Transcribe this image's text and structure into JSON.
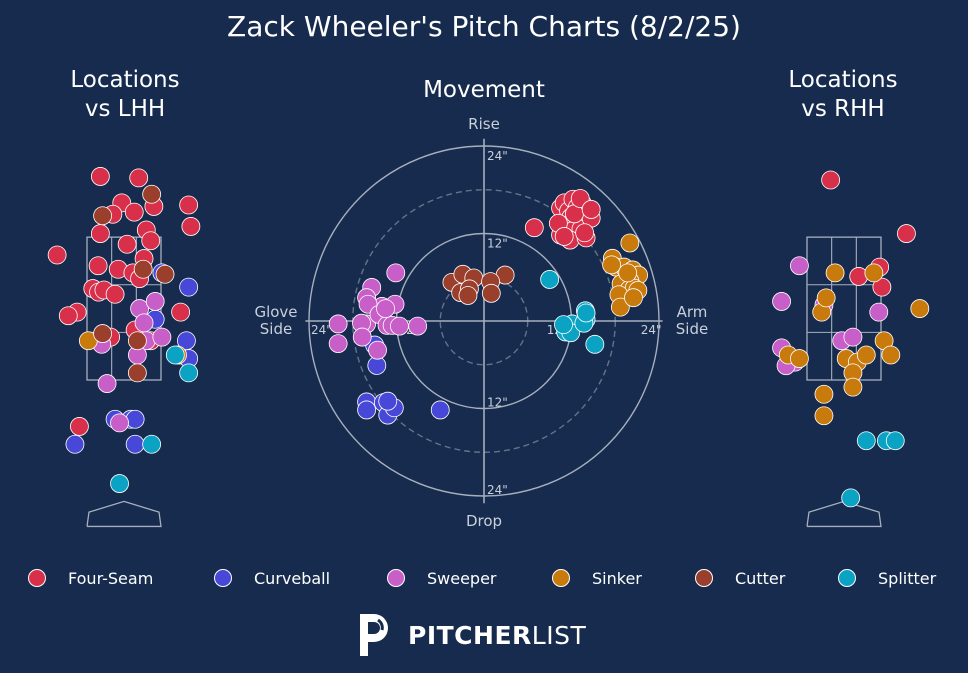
{
  "title": "Zack Wheeler's Pitch Charts (8/2/25)",
  "brand": {
    "bold": "PITCHER",
    "light": "LIST"
  },
  "colors": {
    "background": "#162b4d",
    "grid": "#a6afbd",
    "Four-Seam": "#d8304a",
    "Curveball": "#4747d8",
    "Sweeper": "#c85ec8",
    "Sinker": "#c97a0d",
    "Cutter": "#9a3f2c",
    "Splitter": "#0aa3c4"
  },
  "legend": [
    "Four-Seam",
    "Curveball",
    "Sweeper",
    "Sinker",
    "Cutter",
    "Splitter"
  ],
  "chart_data": [
    {
      "type": "scatter",
      "title": "Locations\nvs LHH",
      "xlim": [
        -2.4,
        2.4
      ],
      "ylim": [
        -0.6,
        5.0
      ],
      "strike_zone": {
        "x": [
          -0.83,
          0.83
        ],
        "y": [
          1.5,
          3.5
        ]
      },
      "series": [
        {
          "name": "Four-Seam",
          "points": [
            [
              -0.53,
              4.35
            ],
            [
              0.33,
              4.33
            ],
            [
              -0.05,
              3.98
            ],
            [
              0.23,
              3.85
            ],
            [
              -0.25,
              3.82
            ],
            [
              0.67,
              3.93
            ],
            [
              -0.53,
              3.55
            ],
            [
              0.5,
              3.6
            ],
            [
              0.6,
              3.45
            ],
            [
              0.07,
              3.4
            ],
            [
              -0.58,
              3.1
            ],
            [
              -0.13,
              3.05
            ],
            [
              0.2,
              3.0
            ],
            [
              0.45,
              3.2
            ],
            [
              0.35,
              2.92
            ],
            [
              -0.7,
              2.78
            ],
            [
              -0.57,
              2.73
            ],
            [
              -0.45,
              2.76
            ],
            [
              -0.2,
              2.7
            ],
            [
              -1.5,
              3.25
            ],
            [
              -1.05,
              2.45
            ],
            [
              -1.25,
              2.4
            ],
            [
              0.25,
              2.2
            ],
            [
              -0.3,
              2.1
            ],
            [
              1.27,
              2.45
            ],
            [
              1.45,
              3.95
            ],
            [
              1.5,
              3.65
            ],
            [
              -1.0,
              0.85
            ],
            [
              0.6,
              2.05
            ]
          ]
        },
        {
          "name": "Curveball",
          "points": [
            [
              0.85,
              3.0
            ],
            [
              1.45,
              2.8
            ],
            [
              0.7,
              2.35
            ],
            [
              1.25,
              1.85
            ],
            [
              1.4,
              2.05
            ],
            [
              -0.2,
              0.95
            ],
            [
              0.15,
              0.95
            ],
            [
              0.25,
              0.95
            ],
            [
              -1.1,
              0.6
            ],
            [
              0.25,
              0.6
            ],
            [
              1.45,
              1.8
            ]
          ]
        },
        {
          "name": "Sweeper",
          "points": [
            [
              0.35,
              2.5
            ],
            [
              0.7,
              2.6
            ],
            [
              0.45,
              2.3
            ],
            [
              0.5,
              2.05
            ],
            [
              0.3,
              1.85
            ],
            [
              0.85,
              2.1
            ],
            [
              -0.5,
              2.0
            ],
            [
              -0.38,
              1.45
            ],
            [
              -0.1,
              0.9
            ]
          ]
        },
        {
          "name": "Sinker",
          "points": [
            [
              -0.8,
              2.05
            ],
            [
              1.2,
              1.85
            ]
          ]
        },
        {
          "name": "Cutter",
          "points": [
            [
              0.62,
              4.1
            ],
            [
              -0.48,
              3.8
            ],
            [
              0.43,
              3.05
            ],
            [
              0.92,
              2.98
            ],
            [
              -0.48,
              2.15
            ],
            [
              0.3,
              2.05
            ],
            [
              0.3,
              1.6
            ]
          ]
        },
        {
          "name": "Splitter",
          "points": [
            [
              1.15,
              1.85
            ],
            [
              1.45,
              1.6
            ],
            [
              0.62,
              0.6
            ],
            [
              -0.1,
              0.05
            ]
          ]
        }
      ]
    },
    {
      "type": "scatter",
      "title": "Movement",
      "xlabel_left": "Glove\nSide",
      "xlabel_right": "Arm\nSide",
      "ylabel_top": "Rise",
      "ylabel_bottom": "Drop",
      "unit": "inches",
      "xlim": [
        -26,
        26
      ],
      "ylim": [
        -26,
        26
      ],
      "rings": [
        {
          "r": 24,
          "style": "solid",
          "label": "24\""
        },
        {
          "r": 18,
          "style": "dashed"
        },
        {
          "r": 12,
          "style": "solid",
          "label": "12\""
        },
        {
          "r": 6,
          "style": "dashed"
        }
      ],
      "series": [
        {
          "name": "Four-Seam",
          "points": [
            [
              10.5,
              15.5
            ],
            [
              11,
              16.2
            ],
            [
              11.6,
              15.1
            ],
            [
              12.2,
              16.7
            ],
            [
              12.8,
              15.6
            ],
            [
              13.5,
              16.1
            ],
            [
              14.2,
              15.3
            ],
            [
              11.9,
              14.2
            ],
            [
              12.7,
              13.6
            ],
            [
              13.3,
              14.7
            ],
            [
              11.1,
              13.1
            ],
            [
              12.2,
              12.4
            ],
            [
              13.3,
              12.6
            ],
            [
              10.5,
              11.8
            ],
            [
              11.8,
              11.1
            ],
            [
              14,
              11.4
            ],
            [
              14.7,
              14.1
            ],
            [
              12.4,
              14.7
            ],
            [
              10.2,
              13.4
            ],
            [
              13.8,
              12.1
            ],
            [
              11,
              11.6
            ],
            [
              13.2,
              16.8
            ],
            [
              6.9,
              12.8
            ],
            [
              14.7,
              15.3
            ]
          ]
        },
        {
          "name": "Curveball",
          "points": [
            [
              -15,
              -3.3
            ],
            [
              -14.7,
              -6.1
            ],
            [
              -16.1,
              -11.1
            ],
            [
              -16.1,
              -12.2
            ],
            [
              -13.8,
              -11.2
            ],
            [
              -13.2,
              -12.9
            ],
            [
              -12.3,
              -11.9
            ],
            [
              -13.2,
              -11
            ],
            [
              -6,
              -12.2
            ]
          ]
        },
        {
          "name": "Sweeper",
          "points": [
            [
              -12.1,
              6.6
            ],
            [
              -15.4,
              4.6
            ],
            [
              -16.1,
              3.2
            ],
            [
              -12.2,
              2.3
            ],
            [
              -14,
              2
            ],
            [
              -15.9,
              2.3
            ],
            [
              -16.1,
              -0.4
            ],
            [
              -16.8,
              -0.3
            ],
            [
              -14.4,
              0.9
            ],
            [
              -13.3,
              -0.6
            ],
            [
              -12.6,
              -0.6
            ],
            [
              -16.7,
              -2.2
            ],
            [
              -20,
              -0.4
            ],
            [
              -20,
              -3.1
            ],
            [
              -14.6,
              -4
            ],
            [
              -11.6,
              -0.7
            ],
            [
              -9.1,
              -0.7
            ],
            [
              -13.5,
              1.7
            ]
          ]
        },
        {
          "name": "Sinker",
          "points": [
            [
              20,
              10.7
            ],
            [
              17.6,
              8.6
            ],
            [
              18.1,
              7.4
            ],
            [
              19.2,
              7.4
            ],
            [
              20.4,
              7
            ],
            [
              21.2,
              6.3
            ],
            [
              20,
              5.5
            ],
            [
              18.8,
              5.1
            ],
            [
              19.9,
              4.3
            ],
            [
              20.6,
              4.5
            ],
            [
              21.1,
              4.2
            ],
            [
              18.5,
              3.6
            ],
            [
              18.7,
              1.9
            ],
            [
              20.5,
              3.2
            ],
            [
              17.5,
              7.7
            ],
            [
              19.7,
              6.6
            ]
          ]
        },
        {
          "name": "Cutter",
          "points": [
            [
              -4.4,
              5.3
            ],
            [
              -2.9,
              6.4
            ],
            [
              -1.4,
              5.9
            ],
            [
              2.9,
              6.3
            ],
            [
              0.9,
              5.4
            ],
            [
              -3.2,
              3.9
            ],
            [
              -2,
              4.4
            ],
            [
              -2.2,
              3.5
            ],
            [
              1,
              3.8
            ]
          ]
        },
        {
          "name": "Splitter",
          "points": [
            [
              9,
              5.7
            ],
            [
              13.9,
              1.4
            ],
            [
              14,
              0.2
            ],
            [
              12.1,
              -0.4
            ],
            [
              11.2,
              -1.5
            ],
            [
              11.9,
              -1.6
            ],
            [
              13.7,
              -0.3
            ],
            [
              15.2,
              -3.2
            ],
            [
              14,
              1.1
            ],
            [
              10.9,
              -0.5
            ]
          ]
        }
      ]
    },
    {
      "type": "scatter",
      "title": "Locations\nvs RHH",
      "xlim": [
        -2.4,
        2.4
      ],
      "ylim": [
        -0.6,
        5.0
      ],
      "strike_zone": {
        "x": [
          -0.83,
          0.83
        ],
        "y": [
          1.5,
          3.5
        ]
      },
      "series": [
        {
          "name": "Four-Seam",
          "points": [
            [
              -0.3,
              4.3
            ],
            [
              0.33,
              2.95
            ],
            [
              1.4,
              3.55
            ],
            [
              0.8,
              3.08
            ],
            [
              0.85,
              2.8
            ]
          ]
        },
        {
          "name": "Curveball",
          "points": []
        },
        {
          "name": "Sweeper",
          "points": [
            [
              -1.0,
              3.1
            ],
            [
              -1.4,
              2.6
            ],
            [
              -0.05,
              2.05
            ],
            [
              0.2,
              2.1
            ],
            [
              -1.4,
              1.95
            ],
            [
              -1.1,
              1.75
            ],
            [
              -1.3,
              1.7
            ],
            [
              0.78,
              2.45
            ],
            [
              -0.45,
              2.55
            ]
          ]
        },
        {
          "name": "Sinker",
          "points": [
            [
              -0.2,
              3.0
            ],
            [
              0.67,
              3.0
            ],
            [
              -0.5,
              2.45
            ],
            [
              -0.4,
              2.65
            ],
            [
              -1.25,
              1.85
            ],
            [
              -1.0,
              1.8
            ],
            [
              0.05,
              1.8
            ],
            [
              0.3,
              1.75
            ],
            [
              0.5,
              1.85
            ],
            [
              0.2,
              1.6
            ],
            [
              0.9,
              2.05
            ],
            [
              1.05,
              1.85
            ],
            [
              -0.45,
              1.3
            ],
            [
              0.2,
              1.4
            ],
            [
              -0.45,
              1.0
            ],
            [
              1.7,
              2.5
            ]
          ]
        },
        {
          "name": "Cutter",
          "points": []
        },
        {
          "name": "Splitter",
          "points": [
            [
              0.5,
              0.65
            ],
            [
              0.95,
              0.65
            ],
            [
              1.15,
              0.65
            ],
            [
              0.15,
              -0.15
            ]
          ]
        }
      ]
    }
  ]
}
